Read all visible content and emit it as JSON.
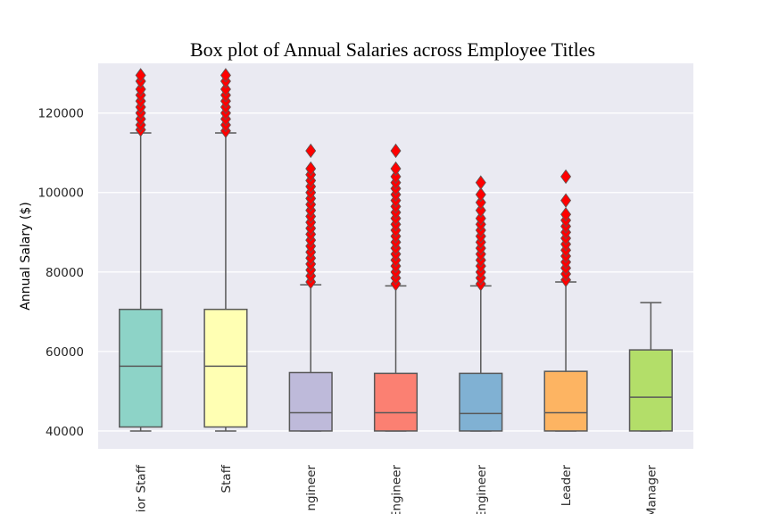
{
  "chart_data": {
    "type": "box",
    "title": "Box plot of Annual Salaries across Employee Titles",
    "xlabel": "",
    "ylabel": "Annual Salary ($)",
    "ylim": [
      35500,
      132500
    ],
    "yticks": [
      40000,
      60000,
      80000,
      100000,
      120000
    ],
    "ytick_labels": [
      "40000",
      "60000",
      "80000",
      "100000",
      "120000"
    ],
    "grid": true,
    "categories": [
      "ior Staff",
      "Staff",
      "ngineer",
      "Engineer",
      "Engineer",
      "Leader",
      "Manager"
    ],
    "colors": {
      "background": "#EAEAF2",
      "grid": "#FFFFFF",
      "line": "#595959",
      "outlier": "#FF0000",
      "boxes": [
        "#8DD3C7",
        "#FFFFB3",
        "#BEBADA",
        "#FB8072",
        "#80B1D3",
        "#FDB462",
        "#B3DE69"
      ]
    },
    "boxes": [
      {
        "min": 40000,
        "q1": 41000,
        "median": 56300,
        "q3": 70600,
        "max": 115000,
        "outliers": [
          115800,
          117000,
          118500,
          120000,
          121500,
          123000,
          124500,
          126000,
          128000,
          129500
        ]
      },
      {
        "min": 40000,
        "q1": 41000,
        "median": 56300,
        "q3": 70600,
        "max": 115000,
        "outliers": [
          115500,
          117000,
          118500,
          120000,
          121500,
          123000,
          124500,
          126000,
          128000,
          129500
        ]
      },
      {
        "min": 40000,
        "q1": 40000,
        "median": 44600,
        "q3": 54700,
        "max": 76800,
        "outliers": [
          77500,
          79000,
          80500,
          82000,
          83500,
          85000,
          86500,
          88000,
          89500,
          91000,
          92500,
          94000,
          95500,
          97000,
          98500,
          100000,
          101500,
          103000,
          104500,
          106000,
          110500
        ]
      },
      {
        "min": 40000,
        "q1": 40000,
        "median": 44600,
        "q3": 54500,
        "max": 76500,
        "outliers": [
          77000,
          78500,
          80000,
          81500,
          83000,
          84500,
          86000,
          87500,
          89000,
          90500,
          92000,
          93500,
          95000,
          96500,
          98000,
          99500,
          101000,
          102500,
          104000,
          106000,
          110500
        ]
      },
      {
        "min": 40000,
        "q1": 40000,
        "median": 44400,
        "q3": 54500,
        "max": 76500,
        "outliers": [
          77000,
          78500,
          80000,
          81500,
          83000,
          84500,
          86000,
          87500,
          89000,
          90500,
          92000,
          93500,
          95500,
          97500,
          99500,
          102500
        ]
      },
      {
        "min": 40000,
        "q1": 40000,
        "median": 44600,
        "q3": 55000,
        "max": 77500,
        "outliers": [
          78000,
          79500,
          81000,
          82500,
          84000,
          85500,
          87000,
          88500,
          90000,
          91500,
          93000,
          94500,
          98000,
          104000
        ]
      },
      {
        "min": 40000,
        "q1": 40000,
        "median": 48500,
        "q3": 60400,
        "max": 72300,
        "outliers": []
      }
    ]
  }
}
